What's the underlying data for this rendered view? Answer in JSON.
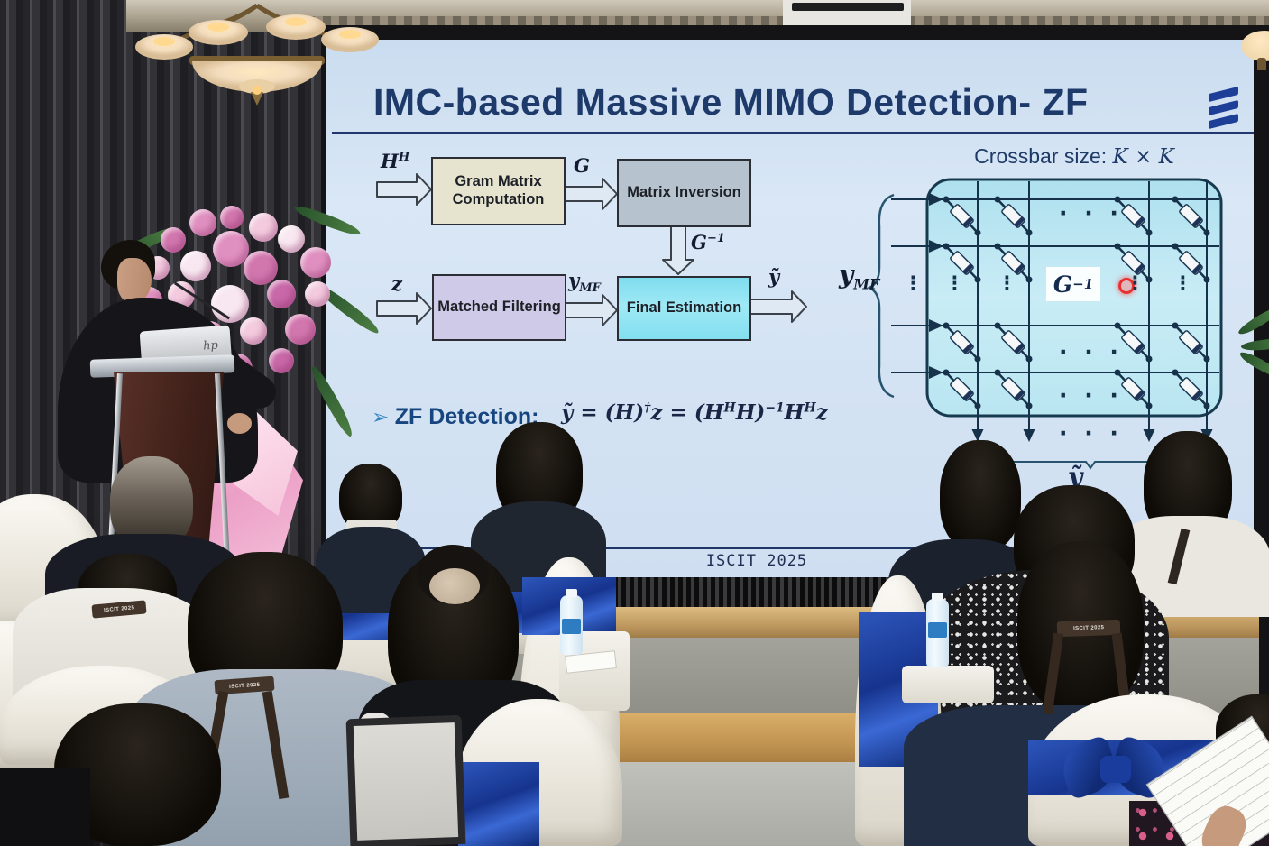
{
  "slide": {
    "title": "IMC-based Massive MIMO Detection- ZF",
    "footer": "ISCIT 2025",
    "logo": "ericsson-logo",
    "flow": {
      "box_gram": "Gram Matrix Computation",
      "box_inversion": "Matrix Inversion",
      "box_matched": "Matched Filtering",
      "box_final": "Final Estimation",
      "label_hh_base": "H",
      "label_hh_sup": "H",
      "label_g": "G",
      "label_ginv_base": "G",
      "label_ginv_sup": "−1",
      "label_z": "z",
      "label_ymf_base": "y",
      "label_ymf_sub": "MF",
      "label_ytilde": "ỹ"
    },
    "bullet": {
      "marker": "➢",
      "label": "ZF Detection:",
      "formula": {
        "p1": "ỹ = (H)",
        "s1": "†",
        "p2": "z = (H",
        "s2": "H",
        "p3": "H)",
        "s3": "−1",
        "p4": "H",
        "s4": "H",
        "p5": "z"
      }
    },
    "crossbar": {
      "title_text": "Crossbar size:",
      "title_math": "K × K",
      "ginv_base": "G",
      "ginv_sup": "−1",
      "ymf_base": "y",
      "ymf_sub": "MF",
      "ytilde": "ỹ",
      "hdots": "· · ·",
      "vdots": "⋮"
    },
    "colors": {
      "title_navy": "#1e3a6a",
      "accent_blue": "#17457f",
      "box_gram_bg": "#e6e4cf",
      "box_inversion_bg": "#b6c2cd",
      "box_matched_bg": "#cfcae7",
      "box_final_bg": "#8ce2f1",
      "crossbar_bg": "#bfe7f2",
      "sash_blue": "#1d3f9e"
    }
  },
  "scene": {
    "lanyard_text": "ISCIT 2025",
    "laptop_logo": "hp"
  }
}
